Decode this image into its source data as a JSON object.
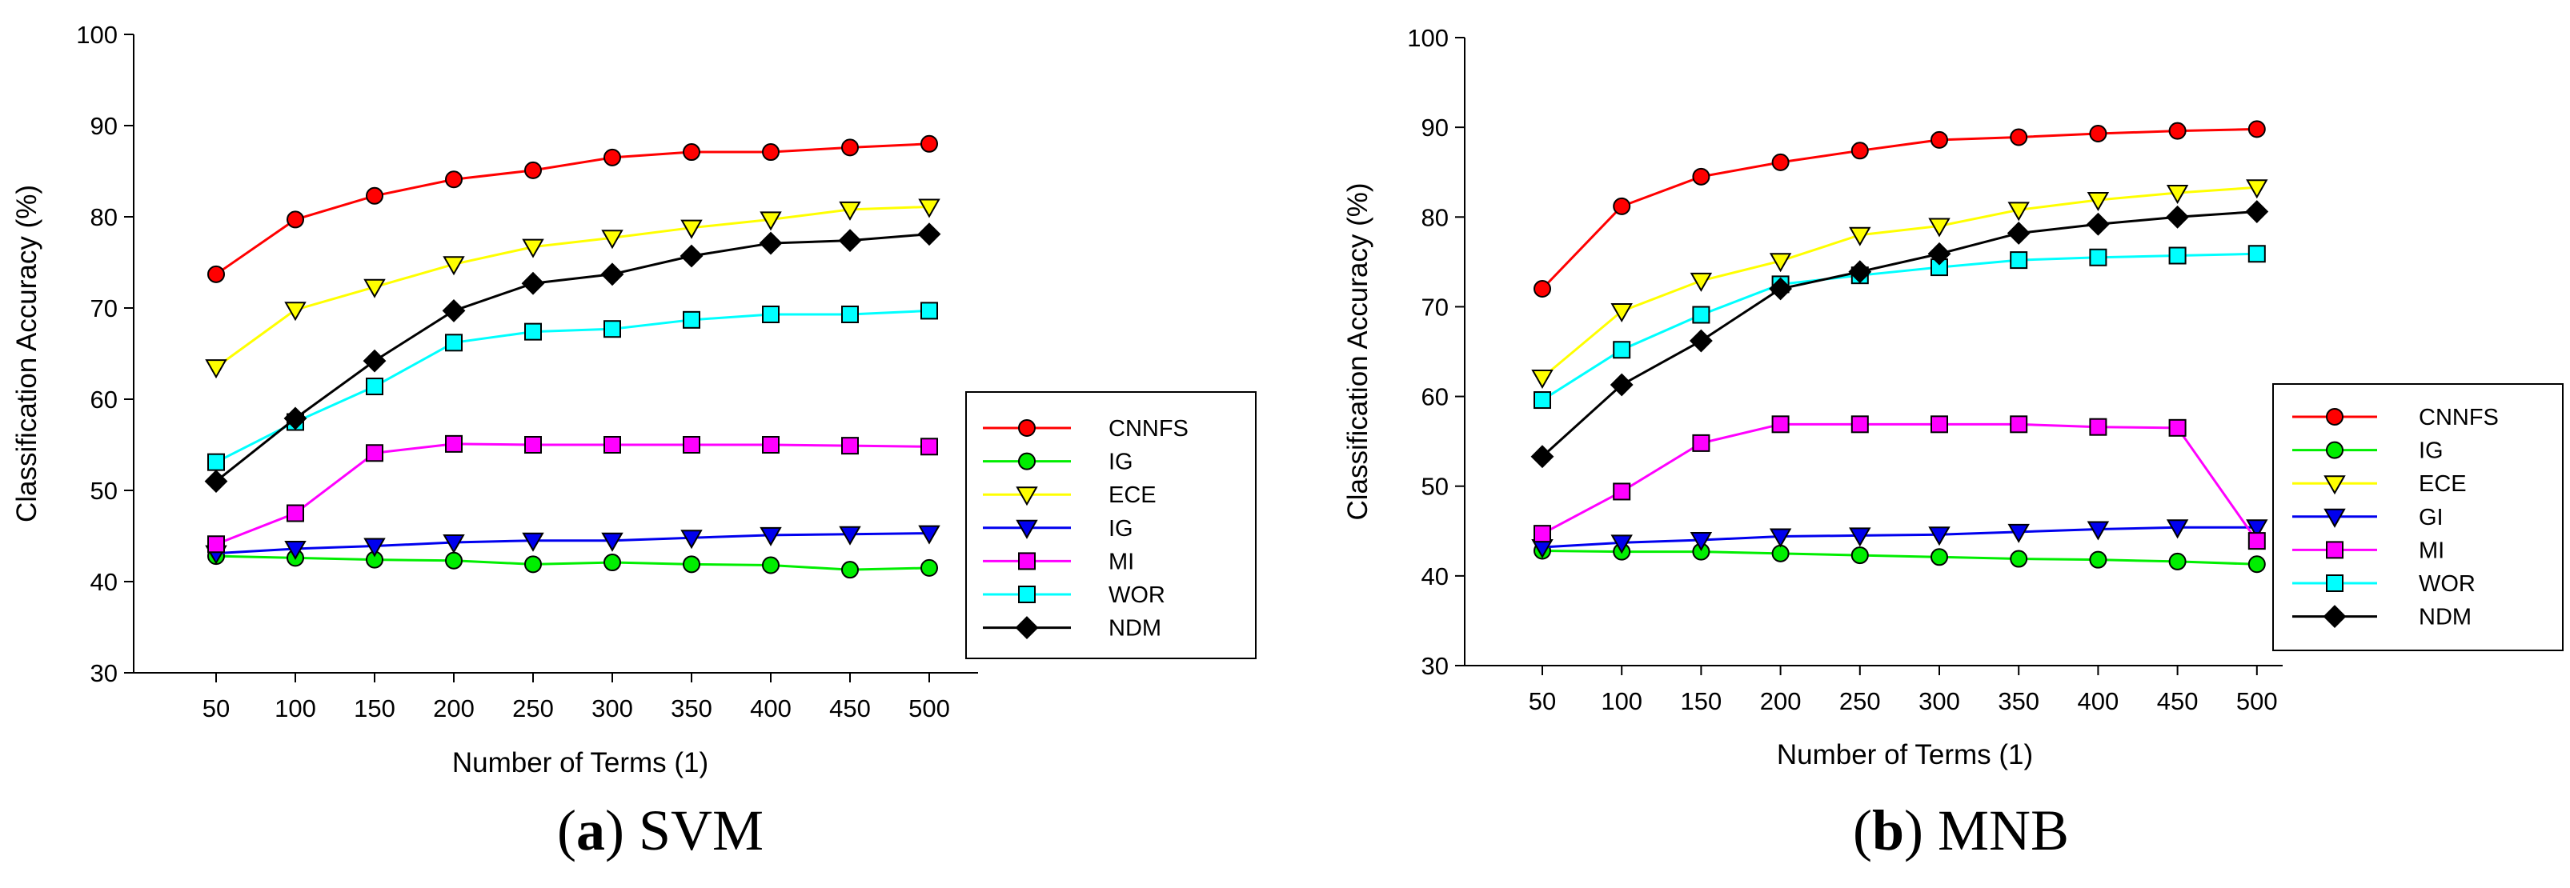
{
  "chart_data": [
    {
      "type": "line",
      "caption": {
        "open": "(",
        "letter": "a",
        "close": ")",
        "name": "SVM"
      },
      "xlabel": "Number of Terms (1)",
      "ylabel": "Classification Accuracy (%)",
      "x": [
        50,
        100,
        150,
        200,
        250,
        300,
        350,
        400,
        450,
        500
      ],
      "ylim": [
        30,
        100
      ],
      "yticks": [
        30,
        40,
        50,
        60,
        70,
        80,
        90,
        100
      ],
      "grid": false,
      "legend_position": "right",
      "series": [
        {
          "name": "CNNFS",
          "color": "#ff0000",
          "marker": "circle",
          "values": [
            73.7,
            79.7,
            82.3,
            84.1,
            85.1,
            86.5,
            87.1,
            87.1,
            87.6,
            88.0
          ]
        },
        {
          "name": "IG",
          "color": "#00ee00",
          "marker": "circle",
          "values": [
            42.8,
            42.6,
            42.4,
            42.3,
            41.9,
            42.1,
            41.9,
            41.8,
            41.3,
            41.5
          ]
        },
        {
          "name": "ECE",
          "color": "#ffff00",
          "marker": "tri-down",
          "values": [
            63.5,
            69.8,
            72.3,
            74.8,
            76.7,
            77.7,
            78.8,
            79.7,
            80.8,
            81.1
          ]
        },
        {
          "name": "IG",
          "color": "#0000ee",
          "marker": "tri-down",
          "values": [
            43.1,
            43.6,
            43.9,
            44.3,
            44.5,
            44.5,
            44.8,
            45.1,
            45.2,
            45.3
          ]
        },
        {
          "name": "MI",
          "color": "#ff00ff",
          "marker": "square",
          "values": [
            44.1,
            47.5,
            54.1,
            55.1,
            55.0,
            55.0,
            55.0,
            55.0,
            54.9,
            54.8
          ]
        },
        {
          "name": "WOR",
          "color": "#00ffff",
          "marker": "square",
          "values": [
            53.1,
            57.5,
            61.4,
            66.2,
            67.4,
            67.7,
            68.7,
            69.3,
            69.3,
            69.7
          ]
        },
        {
          "name": "NDM",
          "color": "#000000",
          "marker": "diamond",
          "values": [
            51.0,
            57.9,
            64.2,
            69.7,
            72.7,
            73.7,
            75.7,
            77.1,
            77.4,
            78.1
          ]
        }
      ]
    },
    {
      "type": "line",
      "caption": {
        "open": "(",
        "letter": "b",
        "close": ")",
        "name": "MNB"
      },
      "xlabel": "Number of Terms (1)",
      "ylabel": "Classification Accuracy (%)",
      "x": [
        50,
        100,
        150,
        200,
        250,
        300,
        350,
        400,
        450,
        500
      ],
      "ylim": [
        30,
        100
      ],
      "yticks": [
        30,
        40,
        50,
        60,
        70,
        80,
        90,
        100
      ],
      "grid": false,
      "legend_position": "right",
      "series": [
        {
          "name": "CNNFS",
          "color": "#ff0000",
          "marker": "circle",
          "values": [
            72.0,
            81.2,
            84.5,
            86.1,
            87.4,
            88.6,
            88.9,
            89.3,
            89.6,
            89.8
          ]
        },
        {
          "name": "IG",
          "color": "#00ee00",
          "marker": "circle",
          "values": [
            42.8,
            42.7,
            42.7,
            42.5,
            42.3,
            42.1,
            41.9,
            41.8,
            41.6,
            41.3
          ]
        },
        {
          "name": "ECE",
          "color": "#ffff00",
          "marker": "tri-down",
          "values": [
            62.1,
            69.5,
            72.9,
            75.1,
            78.0,
            79.0,
            80.8,
            81.9,
            82.7,
            83.3
          ]
        },
        {
          "name": "GI",
          "color": "#0000ee",
          "marker": "tri-down",
          "values": [
            43.2,
            43.7,
            44.0,
            44.4,
            44.5,
            44.6,
            44.9,
            45.2,
            45.4,
            45.4
          ]
        },
        {
          "name": "MI",
          "color": "#ff00ff",
          "marker": "square",
          "values": [
            44.7,
            49.4,
            54.8,
            56.9,
            56.9,
            56.9,
            56.9,
            56.6,
            56.5,
            43.9
          ]
        },
        {
          "name": "WOR",
          "color": "#00ffff",
          "marker": "square",
          "values": [
            59.6,
            65.2,
            69.1,
            72.5,
            73.5,
            74.4,
            75.2,
            75.5,
            75.7,
            75.9
          ]
        },
        {
          "name": "NDM",
          "color": "#000000",
          "marker": "diamond",
          "values": [
            53.3,
            61.3,
            66.2,
            72.0,
            73.9,
            75.9,
            78.2,
            79.2,
            80.0,
            80.6
          ]
        }
      ]
    }
  ]
}
